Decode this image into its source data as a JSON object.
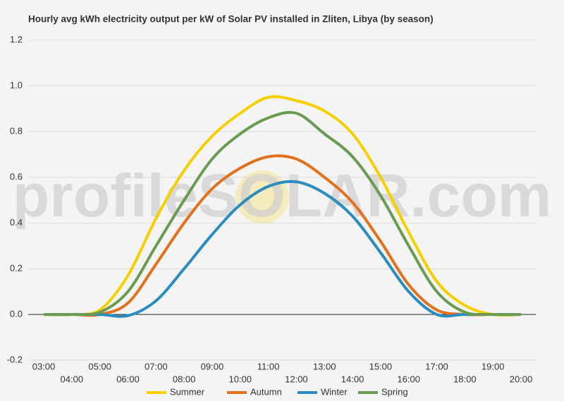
{
  "chart_data": {
    "type": "line",
    "title": "Hourly avg kWh electricity output per kW of Solar PV installed in Zliten, Libya (by season)",
    "watermark": "profileSOLAR.com",
    "categories": [
      "03:00",
      "04:00",
      "05:00",
      "06:00",
      "07:00",
      "08:00",
      "09:00",
      "10:00",
      "11:00",
      "12:00",
      "13:00",
      "14:00",
      "15:00",
      "16:00",
      "17:00",
      "18:00",
      "19:00",
      "20:00"
    ],
    "series": [
      {
        "name": "Summer",
        "color": "#f5d000",
        "values": [
          0,
          0,
          0.02,
          0.17,
          0.42,
          0.63,
          0.78,
          0.88,
          0.95,
          0.935,
          0.89,
          0.79,
          0.6,
          0.36,
          0.145,
          0.04,
          0,
          0
        ]
      },
      {
        "name": "Autumn",
        "color": "#e2711d",
        "values": [
          0,
          0,
          0,
          0.05,
          0.22,
          0.4,
          0.55,
          0.64,
          0.69,
          0.68,
          0.6,
          0.49,
          0.32,
          0.13,
          0.02,
          0,
          0,
          0
        ]
      },
      {
        "name": "Winter",
        "color": "#2b8cbe",
        "values": [
          0,
          0,
          0,
          -0.005,
          0.06,
          0.2,
          0.35,
          0.48,
          0.56,
          0.58,
          0.53,
          0.43,
          0.27,
          0.1,
          0,
          0,
          0,
          0
        ]
      },
      {
        "name": "Spring",
        "color": "#6b9a52",
        "values": [
          0,
          0,
          0.01,
          0.1,
          0.3,
          0.5,
          0.68,
          0.79,
          0.86,
          0.88,
          0.79,
          0.69,
          0.52,
          0.3,
          0.1,
          0.01,
          0,
          0
        ]
      }
    ],
    "ylim": [
      -0.2,
      1.2
    ],
    "yticks": [
      -0.2,
      {
        "value": 0,
        "label": "0.0"
      },
      0.2,
      0.4,
      0.6,
      0.8,
      {
        "value": 1,
        "label": "1.0"
      },
      1.2
    ],
    "grid": true,
    "legend": "bottom"
  }
}
